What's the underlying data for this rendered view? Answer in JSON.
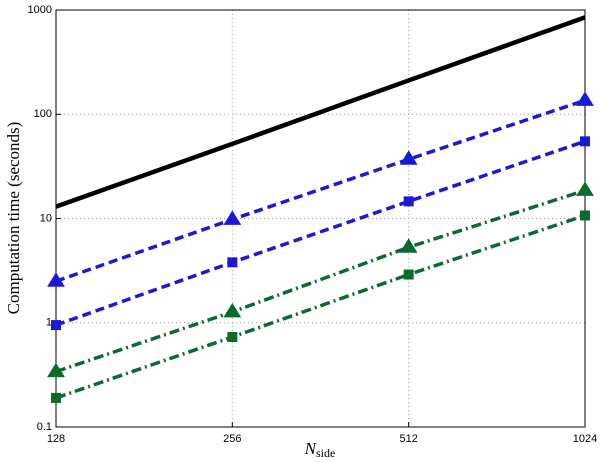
{
  "chart_data": {
    "type": "line",
    "x_label": "N",
    "x_label_subscript": "side",
    "y_label": "Computation time (seconds)",
    "x": [
      128,
      256,
      512,
      1024
    ],
    "xscale": "log",
    "yscale": "log",
    "xlim": [
      128,
      1024
    ],
    "xticks": [
      128,
      256,
      512,
      1024
    ],
    "ylim": [
      0.1,
      1000
    ],
    "yticks": [
      0.1,
      1,
      10,
      100,
      1000
    ],
    "grid": true,
    "series": [
      {
        "color": "#000000",
        "line_style": "solid",
        "marker": "none",
        "values": [
          13,
          52,
          211,
          850
        ]
      },
      {
        "color": "#1a1ad6",
        "line_style": "dashed",
        "marker": "triangle",
        "values": [
          2.5,
          9.8,
          37,
          136
        ]
      },
      {
        "color": "#1a1ad6",
        "line_style": "dashed",
        "marker": "square",
        "values": [
          0.95,
          3.8,
          14.6,
          55
        ]
      },
      {
        "color": "#0b6b2e",
        "line_style": "dashdot",
        "marker": "triangle",
        "values": [
          0.34,
          1.27,
          5.3,
          18.6
        ]
      },
      {
        "color": "#0b6b2e",
        "line_style": "dashdot",
        "marker": "square",
        "values": [
          0.19,
          0.73,
          2.9,
          10.7
        ]
      }
    ]
  }
}
